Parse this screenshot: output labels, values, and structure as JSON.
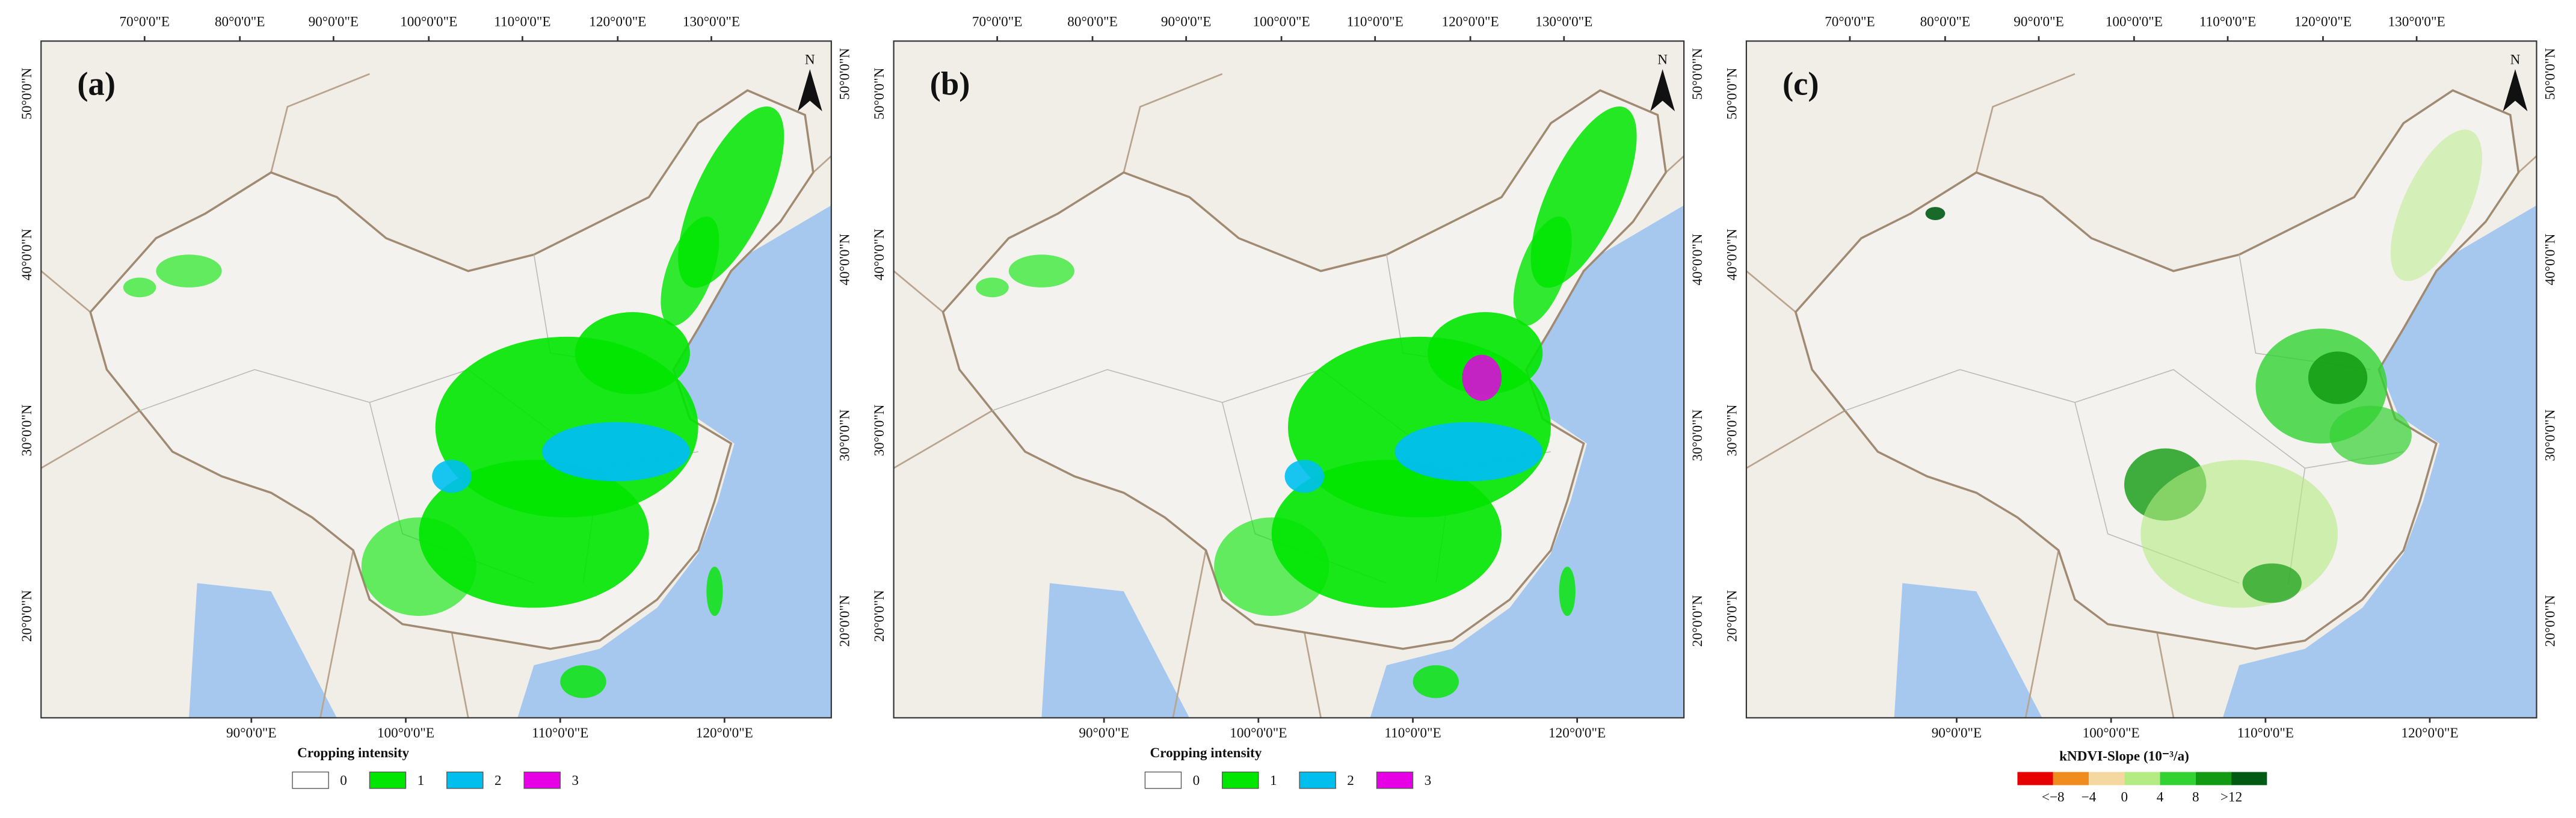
{
  "panels": [
    {
      "label": "(a)",
      "north": "N",
      "top_ticks": [
        "70°0'0\"E",
        "80°0'0\"E",
        "90°0'0\"E",
        "100°0'0\"E",
        "110°0'0\"E",
        "120°0'0\"E",
        "130°0'0\"E"
      ],
      "bottom_ticks": [
        "90°0'0\"E",
        "100°0'0\"E",
        "110°0'0\"E",
        "120°0'0\"E"
      ],
      "left_ticks": [
        "50°0'0\"N",
        "40°0'0\"N",
        "30°0'0\"N",
        "20°0'0\"N"
      ],
      "right_ticks": [
        "50°0'0\"N",
        "40°0'0\"N",
        "30°0'0\"N",
        "20°0'0\"N"
      ],
      "legend": {
        "title": "Cropping intensity",
        "items": [
          {
            "label": "0",
            "color": "#ffffff"
          },
          {
            "label": "1",
            "color": "#00e600"
          },
          {
            "label": "2",
            "color": "#00bfef"
          },
          {
            "label": "3",
            "color": "#e600e6"
          }
        ]
      }
    },
    {
      "label": "(b)",
      "north": "N",
      "top_ticks": [
        "70°0'0\"E",
        "80°0'0\"E",
        "90°0'0\"E",
        "100°0'0\"E",
        "110°0'0\"E",
        "120°0'0\"E",
        "130°0'0\"E"
      ],
      "bottom_ticks": [
        "90°0'0\"E",
        "100°0'0\"E",
        "110°0'0\"E",
        "120°0'0\"E"
      ],
      "left_ticks": [
        "50°0'0\"N",
        "40°0'0\"N",
        "30°0'0\"N",
        "20°0'0\"N"
      ],
      "right_ticks": [
        "50°0'0\"N",
        "40°0'0\"N",
        "30°0'0\"N",
        "20°0'0\"N"
      ],
      "legend": {
        "title": "Cropping intensity",
        "items": [
          {
            "label": "0",
            "color": "#ffffff"
          },
          {
            "label": "1",
            "color": "#00e600"
          },
          {
            "label": "2",
            "color": "#00bfef"
          },
          {
            "label": "3",
            "color": "#e600e6"
          }
        ]
      }
    },
    {
      "label": "(c)",
      "north": "N",
      "top_ticks": [
        "70°0'0\"E",
        "80°0'0\"E",
        "90°0'0\"E",
        "100°0'0\"E",
        "110°0'0\"E",
        "120°0'0\"E",
        "130°0'0\"E"
      ],
      "bottom_ticks": [
        "90°0'0\"E",
        "100°0'0\"E",
        "110°0'0\"E",
        "120°0'0\"E"
      ],
      "left_ticks": [
        "50°0'0\"N",
        "40°0'0\"N",
        "30°0'0\"N",
        "20°0'0\"N"
      ],
      "right_ticks": [
        "50°0'0\"N",
        "40°0'0\"N",
        "30°0'0\"N",
        "20°0'0\"N"
      ],
      "legend": {
        "title": "kNDVI-Slope (10⁻³/a)",
        "colors": [
          "#e60000",
          "#f08c1e",
          "#f5d7a0",
          "#b4eb82",
          "#32d232",
          "#129b12",
          "#005a14"
        ],
        "labels": [
          "<−8",
          "−4",
          "0",
          "4",
          "8",
          ">12"
        ]
      }
    }
  ]
}
